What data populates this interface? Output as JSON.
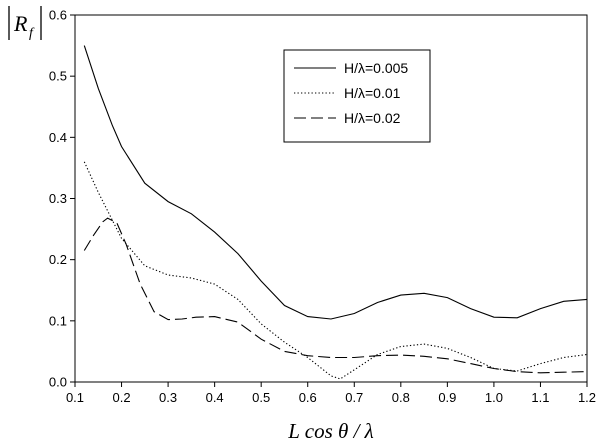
{
  "chart_data": {
    "type": "line",
    "xlabel": "L cos θ / λ",
    "ylabel": "|R_f|",
    "xlim": [
      0.1,
      1.2
    ],
    "ylim": [
      0.0,
      0.6
    ],
    "x_ticks": [
      "0.1",
      "0.2",
      "0.3",
      "0.4",
      "0.5",
      "0.6",
      "0.7",
      "0.8",
      "0.9",
      "1.0",
      "1.1",
      "1.2"
    ],
    "y_ticks": [
      "0.0",
      "0.1",
      "0.2",
      "0.3",
      "0.4",
      "0.5",
      "0.6"
    ],
    "legend_position": "top-right",
    "grid": false,
    "series": [
      {
        "name": "H/λ=0.005",
        "style": "solid",
        "x": [
          0.12,
          0.15,
          0.18,
          0.2,
          0.25,
          0.3,
          0.35,
          0.4,
          0.45,
          0.5,
          0.55,
          0.6,
          0.65,
          0.7,
          0.75,
          0.8,
          0.85,
          0.9,
          0.95,
          1.0,
          1.05,
          1.1,
          1.15,
          1.2
        ],
        "y": [
          0.55,
          0.48,
          0.42,
          0.385,
          0.325,
          0.295,
          0.275,
          0.245,
          0.21,
          0.165,
          0.125,
          0.107,
          0.103,
          0.112,
          0.13,
          0.142,
          0.145,
          0.138,
          0.12,
          0.106,
          0.105,
          0.12,
          0.132,
          0.135
        ]
      },
      {
        "name": "H/λ=0.01",
        "style": "dotted",
        "x": [
          0.12,
          0.15,
          0.18,
          0.2,
          0.25,
          0.3,
          0.35,
          0.4,
          0.45,
          0.5,
          0.55,
          0.6,
          0.63,
          0.65,
          0.67,
          0.7,
          0.75,
          0.8,
          0.85,
          0.9,
          0.95,
          1.0,
          1.05,
          1.1,
          1.15,
          1.2
        ],
        "y": [
          0.36,
          0.31,
          0.265,
          0.235,
          0.19,
          0.175,
          0.17,
          0.16,
          0.135,
          0.095,
          0.065,
          0.04,
          0.022,
          0.01,
          0.005,
          0.02,
          0.045,
          0.058,
          0.062,
          0.055,
          0.04,
          0.022,
          0.018,
          0.03,
          0.04,
          0.045
        ]
      },
      {
        "name": "H/λ=0.02",
        "style": "dashed",
        "x": [
          0.12,
          0.14,
          0.16,
          0.17,
          0.19,
          0.21,
          0.24,
          0.27,
          0.3,
          0.33,
          0.36,
          0.4,
          0.45,
          0.5,
          0.55,
          0.6,
          0.65,
          0.7,
          0.75,
          0.8,
          0.85,
          0.9,
          0.95,
          1.0,
          1.05,
          1.1,
          1.15,
          1.2
        ],
        "y": [
          0.215,
          0.24,
          0.262,
          0.268,
          0.26,
          0.225,
          0.16,
          0.115,
          0.102,
          0.103,
          0.106,
          0.107,
          0.098,
          0.07,
          0.05,
          0.043,
          0.04,
          0.04,
          0.043,
          0.044,
          0.042,
          0.038,
          0.03,
          0.022,
          0.017,
          0.015,
          0.016,
          0.017
        ]
      }
    ]
  }
}
